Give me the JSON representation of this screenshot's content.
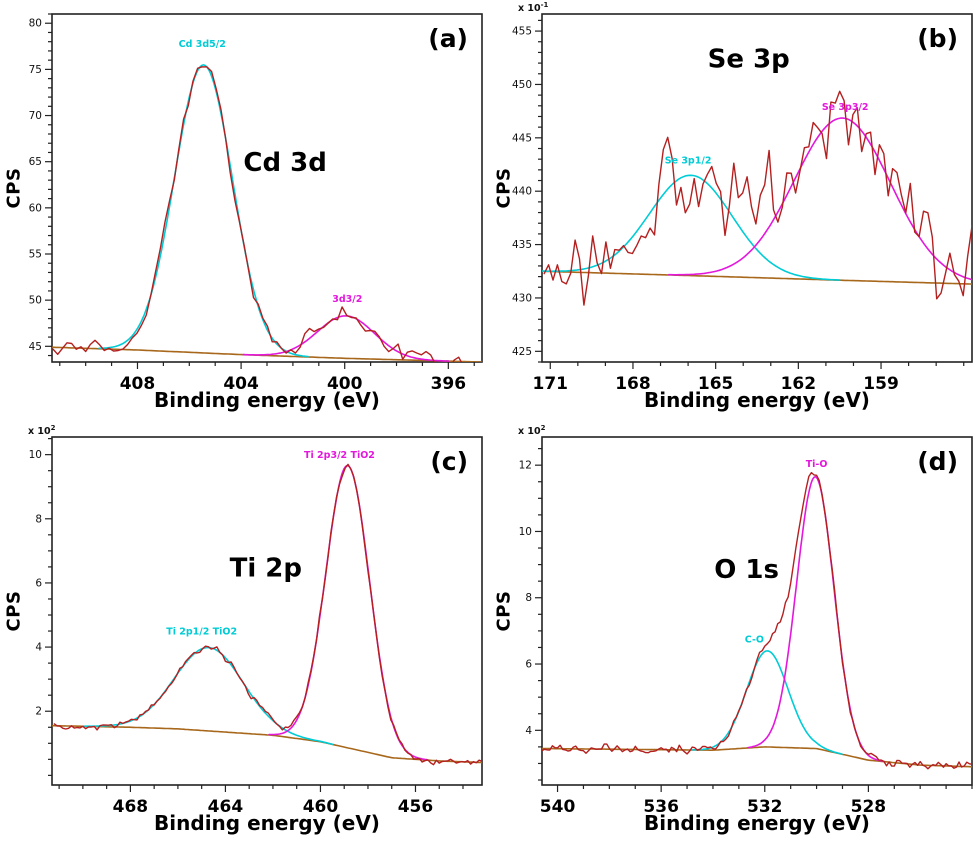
{
  "colors": {
    "raw": "#b42020",
    "fit1": "#00ccd6",
    "fit2": "#e318dc",
    "background_line": "#a8681c",
    "frame": "#222222",
    "ink": "#000000"
  },
  "chart_data": [
    {
      "id": "a",
      "type": "line",
      "panel_label": "(a)",
      "title": "Cd 3d",
      "xlabel": "Binding energy (eV)",
      "ylabel": "CPS",
      "y_multiplier": null,
      "x_range": [
        411.3,
        394.7
      ],
      "y_range": [
        43.3,
        81.0
      ],
      "x_ticks": [
        408,
        404,
        400,
        396
      ],
      "x_minor_step": 1,
      "y_ticks": [
        45,
        50,
        55,
        60,
        65,
        70,
        75,
        80
      ],
      "y_minor_step": 1,
      "background_points": [
        [
          394.8,
          43.3
        ],
        [
          400,
          43.7
        ],
        [
          404,
          44.1
        ],
        [
          408,
          44.6
        ],
        [
          411.3,
          44.9
        ]
      ],
      "peaks": [
        {
          "label": "Cd 3d5/2",
          "color_key": "fit1",
          "center": 405.45,
          "sigma": 1.12,
          "amplitude": 31.2
        },
        {
          "label": "3d3/2",
          "color_key": "fit2",
          "center": 399.95,
          "sigma": 1.1,
          "amplitude": 4.6
        }
      ],
      "raw": {
        "step": 0.18,
        "noise_sigma": 0.65,
        "seed": 42
      },
      "annotations": [
        {
          "text": "Cd 3d5/2",
          "x": 405.5,
          "y": 77.4,
          "color_key": "fit1",
          "size": "sm"
        },
        {
          "text": "3d3/2",
          "x": 399.9,
          "y": 49.8,
          "color_key": "fit2",
          "size": "sm"
        },
        {
          "text": "Cd 3d",
          "x": 402.3,
          "y": 64.0,
          "color_key": "ink",
          "size": "lg"
        }
      ]
    },
    {
      "id": "b",
      "type": "line",
      "panel_label": "(b)",
      "title": "Se 3p",
      "xlabel": "Binding energy (eV)",
      "ylabel": "CPS",
      "y_multiplier": {
        "base": "x 10",
        "exp": "-1"
      },
      "x_range": [
        171.3,
        155.7
      ],
      "y_range": [
        424.0,
        456.6
      ],
      "x_ticks": [
        171,
        168,
        165,
        162,
        159
      ],
      "x_minor_step": 1,
      "y_ticks": [
        425,
        430,
        435,
        440,
        445,
        450,
        455
      ],
      "y_minor_step": 1,
      "background_points": [
        [
          155.7,
          431.3
        ],
        [
          161,
          431.7
        ],
        [
          166,
          432.1
        ],
        [
          171.3,
          432.5
        ]
      ],
      "peaks": [
        {
          "label": "Se 3p1/2",
          "color_key": "fit1",
          "center": 165.9,
          "sigma": 1.5,
          "amplitude": 9.4
        },
        {
          "label": "Se 3p3/2",
          "color_key": "fit2",
          "center": 160.4,
          "sigma": 1.75,
          "amplitude": 15.2
        }
      ],
      "raw": {
        "step": 0.16,
        "noise_sigma": 2.6,
        "seed": 7
      },
      "annotations": [
        {
          "text": "Se 3p1/2",
          "x": 166.0,
          "y": 442.6,
          "color_key": "fit1",
          "size": "sm"
        },
        {
          "text": "Se 3p3/2",
          "x": 160.3,
          "y": 447.6,
          "color_key": "fit2",
          "size": "sm"
        },
        {
          "text": "Se 3p",
          "x": 163.8,
          "y": 451.6,
          "color_key": "ink",
          "size": "lg"
        }
      ]
    },
    {
      "id": "c",
      "type": "line",
      "panel_label": "(c)",
      "title": "Ti 2p",
      "xlabel": "Binding energy (eV)",
      "ylabel": "CPS",
      "y_multiplier": {
        "base": "x 10",
        "exp": "2"
      },
      "x_range": [
        471.3,
        453.2
      ],
      "y_range": [
        -0.3,
        10.55
      ],
      "x_ticks": [
        468,
        464,
        460,
        456
      ],
      "x_minor_step": 1,
      "y_ticks": [
        2,
        4,
        6,
        8,
        10
      ],
      "y_minor_step": 0.5,
      "background_points": [
        [
          453.2,
          0.4
        ],
        [
          455,
          0.45
        ],
        [
          457,
          0.55
        ],
        [
          458.5,
          0.8
        ],
        [
          460,
          1.05
        ],
        [
          462,
          1.25
        ],
        [
          464,
          1.35
        ],
        [
          466,
          1.45
        ],
        [
          468,
          1.5
        ],
        [
          471.3,
          1.55
        ]
      ],
      "peaks": [
        {
          "label": "Ti 2p1/2 TiO2",
          "color_key": "fit1",
          "center": 464.7,
          "sigma": 1.45,
          "amplitude": 2.6
        },
        {
          "label": "Ti 2p3/2 TiO2",
          "color_key": "fit2",
          "center": 458.85,
          "sigma": 0.92,
          "amplitude": 8.8
        }
      ],
      "raw": {
        "step": 0.12,
        "noise_sigma": 0.07,
        "seed": 3
      },
      "annotations": [
        {
          "text": "Ti 2p1/2 TiO2",
          "x": 465.0,
          "y": 4.4,
          "color_key": "fit1",
          "size": "sm"
        },
        {
          "text": "Ti 2p3/2  TiO2",
          "x": 459.2,
          "y": 9.9,
          "color_key": "fit2",
          "size": "sm"
        },
        {
          "text": "Ti 2p",
          "x": 462.3,
          "y": 6.2,
          "color_key": "ink",
          "size": "lg"
        }
      ]
    },
    {
      "id": "d",
      "type": "line",
      "panel_label": "(d)",
      "title": "O 1s",
      "xlabel": "Binding energy (eV)",
      "ylabel": "CPS",
      "y_multiplier": {
        "base": "x 10",
        "exp": "2"
      },
      "x_range": [
        540.6,
        524.0
      ],
      "y_range": [
        2.35,
        12.85
      ],
      "x_ticks": [
        540,
        536,
        532,
        528
      ],
      "x_minor_step": 1,
      "y_ticks": [
        4,
        6,
        8,
        10,
        12
      ],
      "y_minor_step": 0.5,
      "background_points": [
        [
          524.0,
          2.9
        ],
        [
          526,
          2.95
        ],
        [
          528,
          3.1
        ],
        [
          530,
          3.45
        ],
        [
          532,
          3.5
        ],
        [
          534,
          3.4
        ],
        [
          540.6,
          3.45
        ]
      ],
      "peaks": [
        {
          "label": "C-O",
          "color_key": "fit1",
          "center": 531.9,
          "sigma": 0.8,
          "amplitude": 2.9
        },
        {
          "label": "Ti-O",
          "color_key": "fit2",
          "center": 530.05,
          "sigma": 0.72,
          "amplitude": 8.2
        }
      ],
      "raw": {
        "step": 0.1,
        "noise_sigma": 0.08,
        "seed": 12
      },
      "annotations": [
        {
          "text": "C-O",
          "x": 532.4,
          "y": 6.65,
          "color_key": "fit1",
          "size": "sm"
        },
        {
          "text": "Ti-O",
          "x": 530.0,
          "y": 11.95,
          "color_key": "fit2",
          "size": "sm"
        },
        {
          "text": "O 1s",
          "x": 532.7,
          "y": 8.6,
          "color_key": "ink",
          "size": "lg"
        }
      ]
    }
  ]
}
